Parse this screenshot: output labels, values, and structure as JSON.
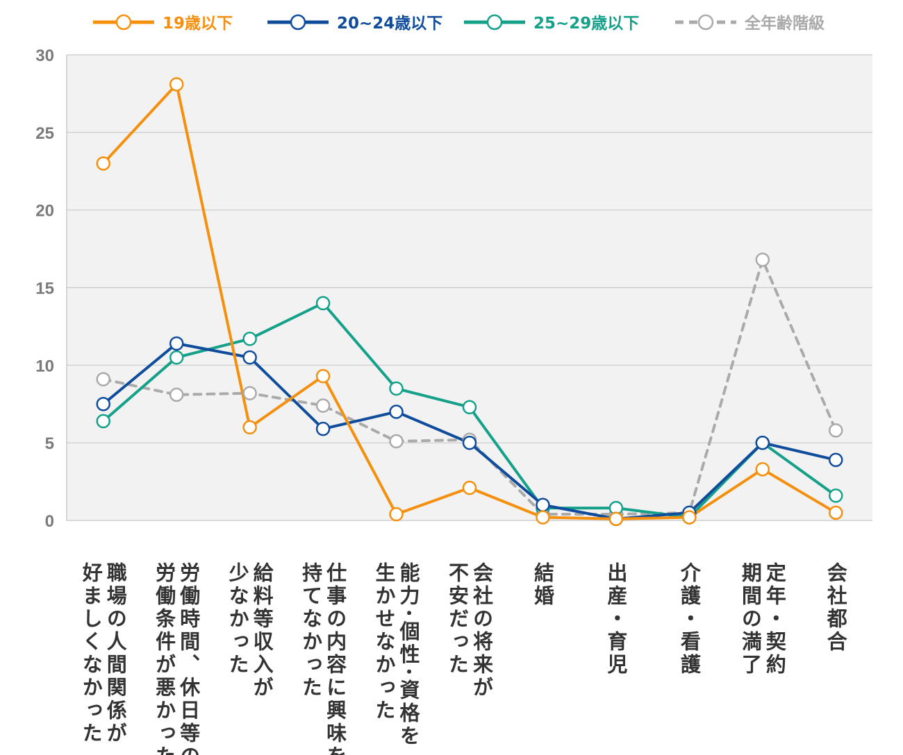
{
  "chart_data": {
    "type": "line",
    "title": "",
    "xlabel": "",
    "ylabel": "",
    "ylim": [
      0,
      30
    ],
    "yticks": [
      0,
      5,
      10,
      15,
      20,
      25,
      30
    ],
    "grid": true,
    "legend_position": "top",
    "categories": [
      [
        "職場の人間関係が",
        "好ましくなかった"
      ],
      [
        "労働時間、休日等の",
        "労働条件が悪かった"
      ],
      [
        "給料等収入が",
        "少なかった"
      ],
      [
        "仕事の内容に興味を",
        "持てなかった"
      ],
      [
        "能力･個性･資格を",
        "生かせなかった"
      ],
      [
        "会社の将来が",
        "不安だった"
      ],
      [
        "結婚"
      ],
      [
        "出産・育児"
      ],
      [
        "介護・看護"
      ],
      [
        "定年・契約",
        "期間の満了"
      ],
      [
        "会社都合"
      ]
    ],
    "series": [
      {
        "name": "全年齢階級",
        "color": "#aaaaaa",
        "dashed": true,
        "values": [
          9.1,
          8.1,
          8.2,
          7.4,
          5.1,
          5.2,
          0.4,
          0.4,
          0.5,
          16.8,
          5.8
        ]
      },
      {
        "name": "25~29歳以下",
        "color": "#15a08a",
        "dashed": false,
        "values": [
          6.4,
          10.5,
          11.7,
          14.0,
          8.5,
          7.3,
          0.8,
          0.8,
          0.2,
          5.0,
          1.6
        ]
      },
      {
        "name": "20~24歳以下",
        "color": "#0f4c9c",
        "dashed": false,
        "values": [
          7.5,
          11.4,
          10.5,
          5.9,
          7.0,
          5.0,
          1.0,
          0.1,
          0.5,
          5.0,
          3.9
        ]
      },
      {
        "name": "19歳以下",
        "color": "#f5900f",
        "dashed": false,
        "values": [
          23.0,
          28.1,
          6.0,
          9.3,
          0.4,
          2.1,
          0.2,
          0.1,
          0.2,
          3.3,
          0.5
        ]
      }
    ],
    "legend": [
      {
        "name": "19歳以下",
        "color": "#f5900f",
        "dashed": false
      },
      {
        "name": "20~24歳以下",
        "color": "#0f4c9c",
        "dashed": false
      },
      {
        "name": "25~29歳以下",
        "color": "#15a08a",
        "dashed": false
      },
      {
        "name": "全年齢階級",
        "color": "#aaaaaa",
        "dashed": true
      }
    ]
  }
}
